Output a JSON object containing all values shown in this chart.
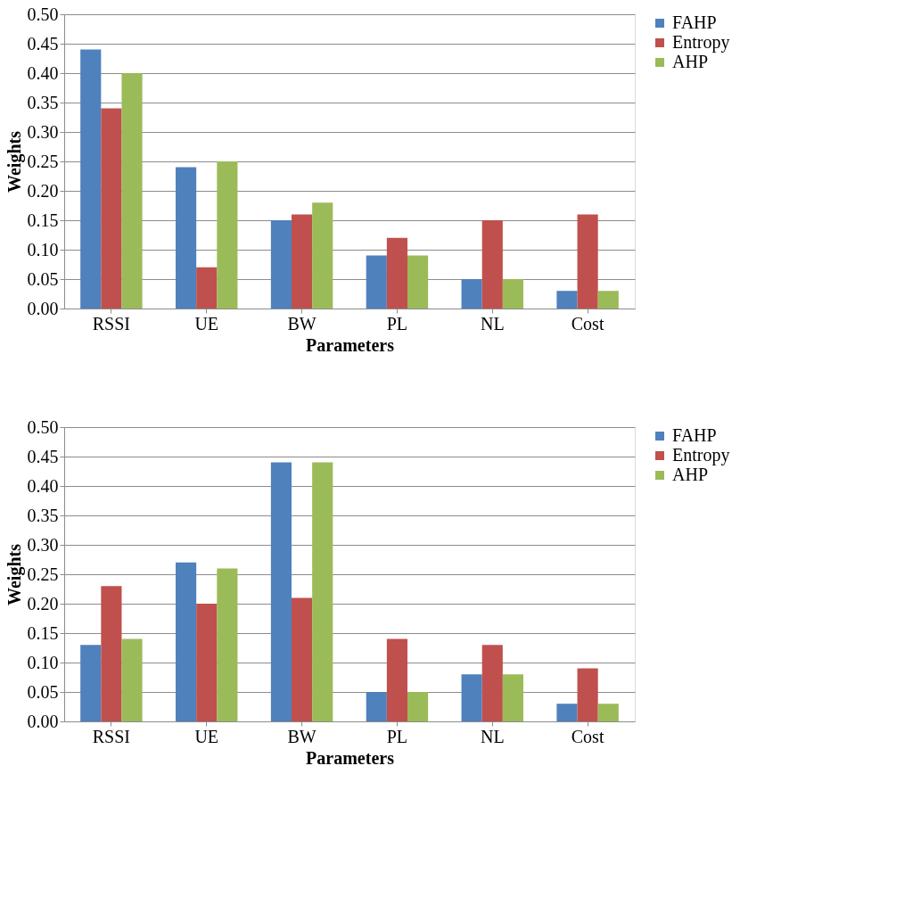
{
  "chart_data": [
    {
      "type": "bar",
      "xlabel": "Parameters",
      "ylabel": "Weights",
      "categories": [
        "RSSI",
        "UE",
        "BW",
        "PL",
        "NL",
        "Cost"
      ],
      "series": [
        {
          "name": "FAHP",
          "color": "#4f81bd",
          "values": [
            0.44,
            0.24,
            0.15,
            0.09,
            0.05,
            0.03
          ]
        },
        {
          "name": "Entropy",
          "color": "#c0504d",
          "values": [
            0.34,
            0.07,
            0.16,
            0.12,
            0.15,
            0.16
          ]
        },
        {
          "name": "AHP",
          "color": "#9bbb59",
          "values": [
            0.4,
            0.25,
            0.18,
            0.09,
            0.05,
            0.03
          ]
        }
      ],
      "ylim": [
        0,
        0.5
      ],
      "yticks": [
        {
          "value": 0,
          "label": "0.00"
        },
        {
          "value": 0.05,
          "label": "0.05"
        },
        {
          "value": 0.1,
          "label": "0.10"
        },
        {
          "value": 0.15,
          "label": "0.15"
        },
        {
          "value": 0.2,
          "label": "0.20"
        },
        {
          "value": 0.25,
          "label": "0.25"
        },
        {
          "value": 0.3,
          "label": "0.30"
        },
        {
          "value": 0.35,
          "label": "0.35"
        },
        {
          "value": 0.4,
          "label": "0.40"
        },
        {
          "value": 0.45,
          "label": "0.45"
        },
        {
          "value": 0.5,
          "label": "0.50"
        }
      ],
      "grid": "y",
      "legend": "right"
    },
    {
      "type": "bar",
      "xlabel": "Parameters",
      "ylabel": "Weights",
      "categories": [
        "RSSI",
        "UE",
        "BW",
        "PL",
        "NL",
        "Cost"
      ],
      "series": [
        {
          "name": "FAHP",
          "color": "#4f81bd",
          "values": [
            0.13,
            0.27,
            0.44,
            0.05,
            0.08,
            0.03
          ]
        },
        {
          "name": "Entropy",
          "color": "#c0504d",
          "values": [
            0.23,
            0.2,
            0.21,
            0.14,
            0.13,
            0.09
          ]
        },
        {
          "name": "AHP",
          "color": "#9bbb59",
          "values": [
            0.14,
            0.26,
            0.44,
            0.05,
            0.08,
            0.03
          ]
        }
      ],
      "ylim": [
        0,
        0.5
      ],
      "yticks": [
        {
          "value": 0,
          "label": "0.00"
        },
        {
          "value": 0.05,
          "label": "0.05"
        },
        {
          "value": 0.1,
          "label": "0.10"
        },
        {
          "value": 0.15,
          "label": "0.15"
        },
        {
          "value": 0.2,
          "label": "0.20"
        },
        {
          "value": 0.25,
          "label": "0.25"
        },
        {
          "value": 0.3,
          "label": "0.30"
        },
        {
          "value": 0.35,
          "label": "0.35"
        },
        {
          "value": 0.4,
          "label": "0.40"
        },
        {
          "value": 0.45,
          "label": "0.45"
        },
        {
          "value": 0.5,
          "label": "0.50"
        }
      ],
      "grid": "y",
      "legend": "right"
    }
  ]
}
